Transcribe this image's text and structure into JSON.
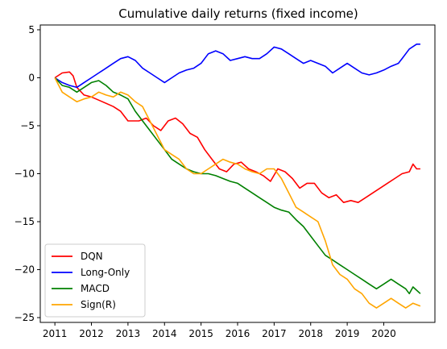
{
  "chart_data": {
    "type": "line",
    "title": "Cumulative daily returns (fixed income)",
    "xlabel": "",
    "ylabel": "",
    "xlim": [
      2010.6,
      2021.4
    ],
    "ylim": [
      -25.5,
      5.5
    ],
    "xticks": [
      2011,
      2012,
      2013,
      2014,
      2015,
      2016,
      2017,
      2018,
      2019,
      2020
    ],
    "xtick_labels": [
      "2011",
      "2012",
      "2013",
      "2014",
      "2015",
      "2016",
      "2017",
      "2018",
      "2019",
      "2020"
    ],
    "yticks": [
      5,
      0,
      -5,
      -10,
      -15,
      -20,
      -25
    ],
    "ytick_labels": [
      "5",
      "0",
      "−5",
      "−10",
      "−15",
      "−20",
      "−25"
    ],
    "grid": false,
    "legend_position": "lower-left",
    "series": [
      {
        "name": "DQN",
        "color": "#ff0000",
        "x": [
          2011.0,
          2011.2,
          2011.4,
          2011.5,
          2011.6,
          2011.8,
          2012.0,
          2012.3,
          2012.6,
          2012.8,
          2013.0,
          2013.3,
          2013.5,
          2013.7,
          2013.9,
          2014.1,
          2014.3,
          2014.5,
          2014.7,
          2014.9,
          2015.1,
          2015.3,
          2015.5,
          2015.7,
          2015.9,
          2016.1,
          2016.3,
          2016.5,
          2016.7,
          2016.9,
          2017.1,
          2017.3,
          2017.5,
          2017.7,
          2017.9,
          2018.1,
          2018.3,
          2018.5,
          2018.7,
          2018.9,
          2019.1,
          2019.3,
          2019.5,
          2019.7,
          2019.9,
          2020.1,
          2020.3,
          2020.5,
          2020.7,
          2020.8,
          2020.9,
          2021.0
        ],
        "y": [
          0.0,
          0.5,
          0.6,
          0.2,
          -1.0,
          -1.8,
          -2.0,
          -2.5,
          -3.0,
          -3.5,
          -4.5,
          -4.5,
          -4.2,
          -5.0,
          -5.5,
          -4.5,
          -4.2,
          -4.8,
          -5.8,
          -6.2,
          -7.5,
          -8.5,
          -9.5,
          -9.8,
          -9.0,
          -8.8,
          -9.5,
          -9.8,
          -10.2,
          -10.8,
          -9.5,
          -9.8,
          -10.5,
          -11.5,
          -11.0,
          -11.0,
          -12.0,
          -12.5,
          -12.2,
          -13.0,
          -12.8,
          -13.0,
          -12.5,
          -12.0,
          -11.5,
          -11.0,
          -10.5,
          -10.0,
          -9.8,
          -9.0,
          -9.5,
          -9.5
        ]
      },
      {
        "name": "Long-Only",
        "color": "#0000ff",
        "x": [
          2011.0,
          2011.2,
          2011.4,
          2011.6,
          2011.8,
          2012.0,
          2012.2,
          2012.4,
          2012.6,
          2012.8,
          2013.0,
          2013.2,
          2013.4,
          2013.6,
          2013.8,
          2014.0,
          2014.2,
          2014.4,
          2014.6,
          2014.8,
          2015.0,
          2015.2,
          2015.4,
          2015.6,
          2015.8,
          2016.0,
          2016.2,
          2016.4,
          2016.6,
          2016.8,
          2017.0,
          2017.2,
          2017.4,
          2017.6,
          2017.8,
          2018.0,
          2018.2,
          2018.4,
          2018.6,
          2018.8,
          2019.0,
          2019.2,
          2019.4,
          2019.6,
          2019.8,
          2020.0,
          2020.2,
          2020.4,
          2020.5,
          2020.7,
          2020.9,
          2021.0
        ],
        "y": [
          0.0,
          -0.5,
          -0.8,
          -1.0,
          -0.5,
          0.0,
          0.5,
          1.0,
          1.5,
          2.0,
          2.2,
          1.8,
          1.0,
          0.5,
          0.0,
          -0.5,
          0.0,
          0.5,
          0.8,
          1.0,
          1.5,
          2.5,
          2.8,
          2.5,
          1.8,
          2.0,
          2.2,
          2.0,
          2.0,
          2.5,
          3.2,
          3.0,
          2.5,
          2.0,
          1.5,
          1.8,
          1.5,
          1.2,
          0.5,
          1.0,
          1.5,
          1.0,
          0.5,
          0.3,
          0.5,
          0.8,
          1.2,
          1.5,
          2.0,
          3.0,
          3.5,
          3.5
        ]
      },
      {
        "name": "MACD",
        "color": "#008000",
        "x": [
          2011.0,
          2011.2,
          2011.4,
          2011.6,
          2011.8,
          2012.0,
          2012.2,
          2012.4,
          2012.6,
          2012.8,
          2013.0,
          2013.2,
          2013.4,
          2013.6,
          2013.8,
          2014.0,
          2014.2,
          2014.4,
          2014.6,
          2014.8,
          2015.0,
          2015.2,
          2015.4,
          2015.6,
          2015.8,
          2016.0,
          2016.2,
          2016.4,
          2016.6,
          2016.8,
          2017.0,
          2017.2,
          2017.4,
          2017.6,
          2017.8,
          2018.0,
          2018.2,
          2018.4,
          2018.6,
          2018.8,
          2019.0,
          2019.2,
          2019.4,
          2019.6,
          2019.8,
          2020.0,
          2020.2,
          2020.4,
          2020.6,
          2020.7,
          2020.8,
          2021.0
        ],
        "y": [
          0.0,
          -0.8,
          -1.0,
          -1.5,
          -1.0,
          -0.5,
          -0.3,
          -0.8,
          -1.5,
          -1.8,
          -2.2,
          -3.5,
          -4.5,
          -5.5,
          -6.5,
          -7.5,
          -8.5,
          -9.0,
          -9.5,
          -9.8,
          -10.0,
          -10.0,
          -10.2,
          -10.5,
          -10.8,
          -11.0,
          -11.5,
          -12.0,
          -12.5,
          -13.0,
          -13.5,
          -13.8,
          -14.0,
          -14.8,
          -15.5,
          -16.5,
          -17.5,
          -18.5,
          -19.0,
          -19.5,
          -20.0,
          -20.5,
          -21.0,
          -21.5,
          -22.0,
          -21.5,
          -21.0,
          -21.5,
          -22.0,
          -22.5,
          -21.8,
          -22.5
        ]
      },
      {
        "name": "Sign(R)",
        "color": "#ffa500",
        "x": [
          2011.0,
          2011.2,
          2011.4,
          2011.6,
          2011.8,
          2012.0,
          2012.2,
          2012.4,
          2012.6,
          2012.8,
          2013.0,
          2013.2,
          2013.4,
          2013.6,
          2013.8,
          2014.0,
          2014.2,
          2014.4,
          2014.6,
          2014.8,
          2015.0,
          2015.2,
          2015.4,
          2015.6,
          2015.8,
          2016.0,
          2016.2,
          2016.4,
          2016.6,
          2016.8,
          2017.0,
          2017.2,
          2017.4,
          2017.6,
          2017.8,
          2018.0,
          2018.2,
          2018.4,
          2018.6,
          2018.8,
          2019.0,
          2019.2,
          2019.4,
          2019.6,
          2019.8,
          2020.0,
          2020.2,
          2020.4,
          2020.6,
          2020.8,
          2021.0
        ],
        "y": [
          0.0,
          -1.5,
          -2.0,
          -2.5,
          -2.2,
          -2.0,
          -1.5,
          -1.8,
          -2.0,
          -1.5,
          -1.8,
          -2.5,
          -3.0,
          -4.5,
          -6.0,
          -7.5,
          -8.0,
          -8.5,
          -9.5,
          -10.0,
          -10.0,
          -9.5,
          -9.0,
          -8.5,
          -8.8,
          -9.0,
          -9.5,
          -9.8,
          -10.0,
          -9.5,
          -9.5,
          -10.5,
          -12.0,
          -13.5,
          -14.0,
          -14.5,
          -15.0,
          -17.0,
          -19.5,
          -20.5,
          -21.0,
          -22.0,
          -22.5,
          -23.5,
          -24.0,
          -23.5,
          -23.0,
          -23.5,
          -24.0,
          -23.5,
          -23.8
        ]
      }
    ]
  }
}
